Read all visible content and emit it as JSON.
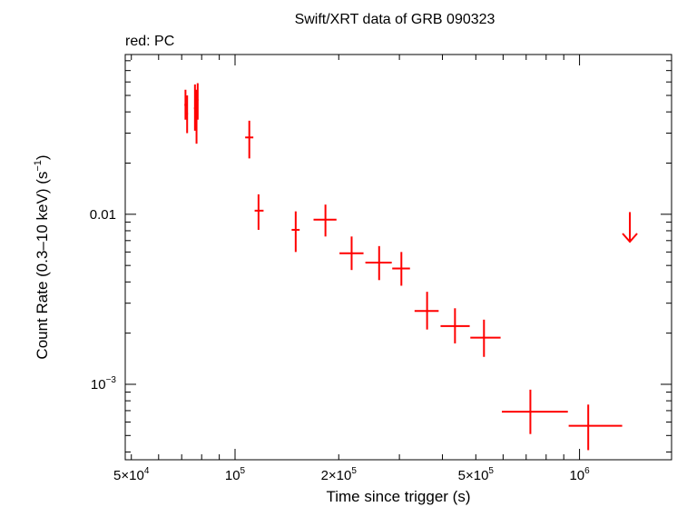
{
  "chart_data": {
    "type": "scatter",
    "title": "Swift/XRT data of GRB 090323",
    "subtitle": "red: PC",
    "xlabel": "Time since trigger (s)",
    "ylabel_main": "Count Rate (0.3–10 keV) (s",
    "ylabel_exp": "−1",
    "ylabel_close": ")",
    "x_scale": "log",
    "y_scale": "log",
    "xlim": [
      48000,
      1850000
    ],
    "ylim": [
      0.00036,
      0.087
    ],
    "x_ticks": [
      {
        "value": 50000,
        "base": "5×10",
        "exp": "4"
      },
      {
        "value": 100000,
        "base": "10",
        "exp": "5"
      },
      {
        "value": 200000,
        "base": "2×10",
        "exp": "5"
      },
      {
        "value": 500000,
        "base": "5×10",
        "exp": "5"
      },
      {
        "value": 1000000,
        "base": "10",
        "exp": "6"
      }
    ],
    "y_ticks": [
      {
        "value": 0.01,
        "base": "0.01",
        "exp": ""
      },
      {
        "value": 0.001,
        "base": "10",
        "exp": "−3"
      }
    ],
    "color": "#ff0000",
    "series": [
      {
        "points": [
          {
            "x": 71800,
            "xlo": 71300,
            "xhi": 72300,
            "y": 0.044,
            "ylo": 0.036,
            "yhi": 0.054
          },
          {
            "x": 72600,
            "xlo": 72200,
            "xhi": 73000,
            "y": 0.039,
            "ylo": 0.03,
            "yhi": 0.05
          },
          {
            "x": 76500,
            "xlo": 76000,
            "xhi": 77000,
            "y": 0.042,
            "ylo": 0.031,
            "yhi": 0.058
          },
          {
            "x": 77300,
            "xlo": 76900,
            "xhi": 77700,
            "y": 0.038,
            "ylo": 0.026,
            "yhi": 0.054
          },
          {
            "x": 77900,
            "xlo": 77500,
            "xhi": 78300,
            "y": 0.047,
            "ylo": 0.036,
            "yhi": 0.059
          },
          {
            "x": 110000,
            "xlo": 107000,
            "xhi": 113000,
            "y": 0.0283,
            "ylo": 0.0213,
            "yhi": 0.0355
          },
          {
            "x": 117000,
            "xlo": 114000,
            "xhi": 121000,
            "y": 0.0105,
            "ylo": 0.0081,
            "yhi": 0.0131
          },
          {
            "x": 150000,
            "xlo": 146000,
            "xhi": 154000,
            "y": 0.0081,
            "ylo": 0.006,
            "yhi": 0.0104
          },
          {
            "x": 183000,
            "xlo": 169000,
            "xhi": 197000,
            "y": 0.0093,
            "ylo": 0.0074,
            "yhi": 0.0114
          },
          {
            "x": 218000,
            "xlo": 201000,
            "xhi": 236000,
            "y": 0.0059,
            "ylo": 0.0047,
            "yhi": 0.0074
          },
          {
            "x": 262000,
            "xlo": 239000,
            "xhi": 285000,
            "y": 0.0052,
            "ylo": 0.0041,
            "yhi": 0.0065
          },
          {
            "x": 304000,
            "xlo": 286000,
            "xhi": 322000,
            "y": 0.0048,
            "ylo": 0.0038,
            "yhi": 0.006
          },
          {
            "x": 361000,
            "xlo": 332000,
            "xhi": 390000,
            "y": 0.0027,
            "ylo": 0.0021,
            "yhi": 0.0035
          },
          {
            "x": 435000,
            "xlo": 395000,
            "xhi": 480000,
            "y": 0.0022,
            "ylo": 0.00174,
            "yhi": 0.0028
          },
          {
            "x": 528000,
            "xlo": 482000,
            "xhi": 590000,
            "y": 0.00188,
            "ylo": 0.00145,
            "yhi": 0.0024
          },
          {
            "x": 720000,
            "xlo": 595000,
            "xhi": 925000,
            "y": 0.00069,
            "ylo": 0.00051,
            "yhi": 0.00093
          },
          {
            "x": 1060000,
            "xlo": 930000,
            "xhi": 1330000,
            "y": 0.00057,
            "ylo": 0.00041,
            "yhi": 0.00076
          }
        ]
      }
    ],
    "upper_limits": [
      {
        "x": 1400000,
        "y": 0.0103,
        "y_arrow_end": 0.0069
      }
    ]
  }
}
